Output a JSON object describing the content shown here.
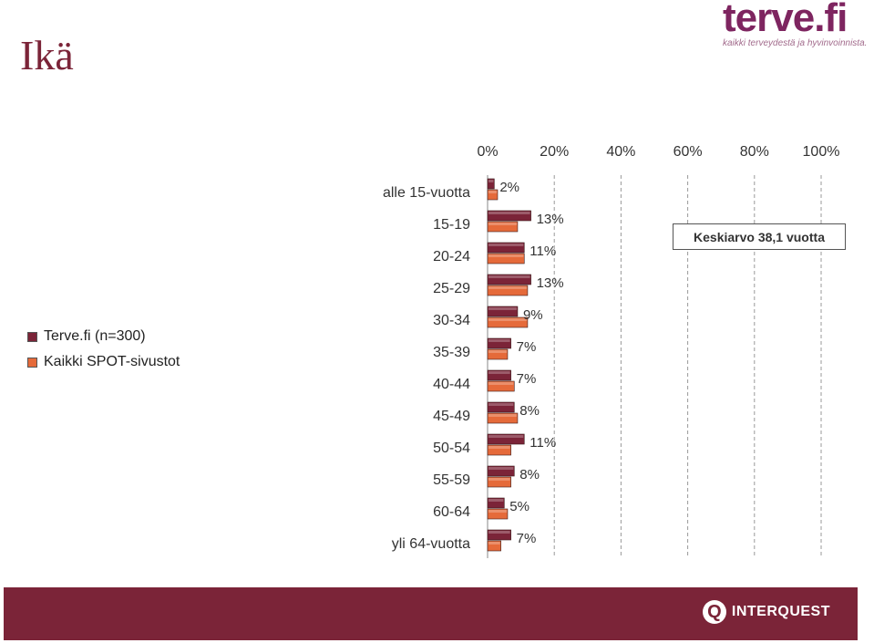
{
  "title": "Ikä",
  "logo": {
    "text": "terve.fi",
    "tagline": "kaikki terveydestä ja hyvinvoinnista."
  },
  "footer": {
    "brand": "INTERQUEST"
  },
  "colors": {
    "series1": "#7b2438",
    "series2": "#e56a3a",
    "footer": "#7b2438"
  },
  "annotation": "Keskiarvo 38,1 vuotta",
  "chart_data": {
    "type": "bar",
    "orientation": "horizontal",
    "categories": [
      "alle 15-vuotta",
      "15-19",
      "20-24",
      "25-29",
      "30-34",
      "35-39",
      "40-44",
      "45-49",
      "50-54",
      "55-59",
      "60-64",
      "yli 64-vuotta"
    ],
    "series": [
      {
        "name": "Terve.fi (n=300)",
        "values": [
          2,
          13,
          11,
          13,
          9,
          7,
          7,
          8,
          11,
          8,
          5,
          7
        ]
      },
      {
        "name": "Kaikki SPOT-sivustot",
        "values": [
          3,
          9,
          11,
          12,
          12,
          6,
          8,
          9,
          7,
          7,
          6,
          4
        ]
      }
    ],
    "data_labels": [
      "2%",
      "13%",
      "11%",
      "13%",
      "9%",
      "7%",
      "7%",
      "8%",
      "11%",
      "8%",
      "5%",
      "7%"
    ],
    "xlim": [
      0,
      100
    ],
    "xticks": [
      "0%",
      "20%",
      "40%",
      "60%",
      "80%",
      "100%"
    ],
    "grid": true,
    "legend_position": "left"
  }
}
